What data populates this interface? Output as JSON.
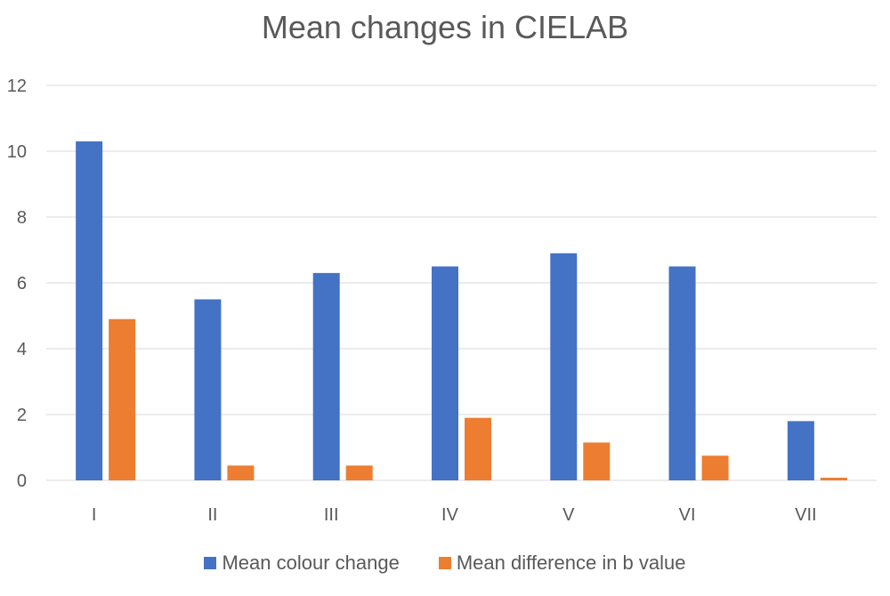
{
  "chart_data": {
    "type": "bar",
    "title": "Mean changes in CIELAB",
    "xlabel": "",
    "ylabel": "",
    "categories": [
      "I",
      "II",
      "III",
      "IV",
      "V",
      "VI",
      "VII"
    ],
    "series": [
      {
        "name": "Mean colour change",
        "color": "#4472C4",
        "values": [
          10.3,
          5.5,
          6.3,
          6.5,
          6.9,
          6.5,
          1.8
        ]
      },
      {
        "name": "Mean difference in b value",
        "color": "#ED7D31",
        "values": [
          4.9,
          0.45,
          0.45,
          1.9,
          1.15,
          0.75,
          0.08
        ]
      }
    ],
    "ylim": [
      0,
      12
    ],
    "yticks": [
      "0",
      "2",
      "4",
      "6",
      "8",
      "10",
      "12"
    ],
    "grid": true,
    "legend_position": "bottom"
  }
}
